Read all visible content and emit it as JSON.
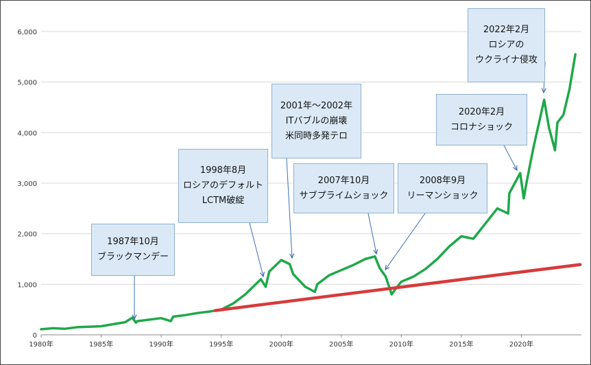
{
  "chart_data": {
    "type": "line",
    "title": "",
    "xlabel": "",
    "ylabel": "",
    "x_ticks": [
      "1980年",
      "1985年",
      "1990年",
      "1995年",
      "2000年",
      "2005年",
      "2010年",
      "2015年",
      "2020年"
    ],
    "x_tick_years": [
      1980,
      1985,
      1990,
      1995,
      2000,
      2005,
      2010,
      2015,
      2020
    ],
    "xlim": [
      1980,
      2025
    ],
    "y_ticks": [
      "0",
      "1,000",
      "2,000",
      "3,000",
      "4,000",
      "5,000",
      "6,000"
    ],
    "y_tick_values": [
      0,
      1000,
      2000,
      3000,
      4000,
      5000,
      6000
    ],
    "ylim": [
      0,
      6000
    ],
    "grid": true,
    "series": [
      {
        "color": "#1fa84a",
        "x": [
          1980,
          1981,
          1982,
          1983,
          1984,
          1985,
          1986,
          1987,
          1987.6,
          1987.9,
          1988,
          1989,
          1990,
          1990.8,
          1991,
          1992,
          1993,
          1994,
          1995,
          1996,
          1997,
          1998.3,
          1998.7,
          1999,
          2000,
          2000.7,
          2001,
          2002,
          2002.8,
          2003,
          2004,
          2005,
          2006,
          2007,
          2007.8,
          2008.2,
          2008.7,
          2009.2,
          2009.5,
          2010,
          2011,
          2012,
          2013,
          2014,
          2015,
          2016,
          2017,
          2018,
          2018.9,
          2019,
          2019.9,
          2020.2,
          2020.5,
          2021,
          2021.9,
          2022.3,
          2022.8,
          2023,
          2023.5,
          2024,
          2024.5
        ],
        "values": [
          110,
          130,
          120,
          150,
          160,
          170,
          210,
          250,
          340,
          240,
          270,
          300,
          330,
          270,
          360,
          390,
          430,
          460,
          500,
          620,
          800,
          1100,
          950,
          1250,
          1480,
          1400,
          1200,
          950,
          850,
          1000,
          1180,
          1280,
          1380,
          1500,
          1550,
          1320,
          1150,
          800,
          900,
          1050,
          1150,
          1300,
          1500,
          1750,
          1950,
          1900,
          2200,
          2500,
          2400,
          2800,
          3200,
          2700,
          3100,
          3700,
          4650,
          4100,
          3650,
          4200,
          4350,
          4850,
          5550
        ]
      },
      {
        "color": "#d63b3b",
        "x": [
          1994.5,
          2024.9
        ],
        "values": [
          480,
          1390
        ]
      }
    ],
    "annotations": [
      {
        "lines": [
          "1987年10月",
          "ブラックマンデー"
        ]
      },
      {
        "lines": [
          "1998年8月",
          "ロシアのデフォルト",
          "LCTM破綻"
        ]
      },
      {
        "lines": [
          "2001年～2002年",
          "ITバブルの崩壊",
          "米同時多発テロ"
        ]
      },
      {
        "lines": [
          "2007年10月",
          "サブプライムショック"
        ]
      },
      {
        "lines": [
          "2008年9月",
          "リーマンショック"
        ]
      },
      {
        "lines": [
          "2020年2月",
          "コロナショック"
        ]
      },
      {
        "lines": [
          "2022年2月",
          "ロシアの",
          "ウクライナ侵攻"
        ]
      }
    ]
  }
}
